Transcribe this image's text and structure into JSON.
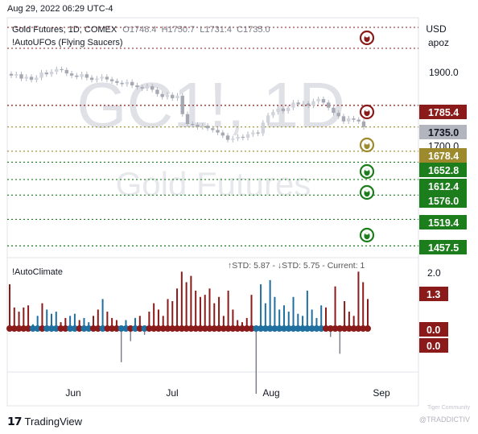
{
  "header": {
    "datetime": "Aug 29, 2022 06:29 UTC-4",
    "symbol_line": "Gold Futures, 1D, COMEX",
    "ohlc": {
      "o_label": "O",
      "o": "1748.4",
      "h_label": "H",
      "h": "1750.7",
      "l_label": "L",
      "l": "1731.4",
      "c_label": "C",
      "c": "1735.0"
    },
    "indicator1": "!AutoUFOs (Flying Saucers)",
    "indicator2": "!AutoClimate",
    "indicator2_stats": "↑STD: 5.87 - ↓STD: 5.75 - Current: 1"
  },
  "watermark": {
    "ticker": "GC1!, 1D",
    "name": "Gold Futures"
  },
  "price_axis": {
    "currency": "USD",
    "unit": "apoz",
    "tick": "1900.0"
  },
  "price_labels": [
    {
      "value": "1785.4",
      "bg": "#8b1a1a",
      "fg": "#ffffff"
    },
    {
      "value": "1735.0",
      "bg": "#b2b5be",
      "fg": "#131722"
    },
    {
      "value": "1700.0",
      "bg": "#ffffff",
      "fg": "#131722"
    },
    {
      "value": "1678.4",
      "bg": "#9c8a2c",
      "fg": "#ffffff"
    },
    {
      "value": "1652.8",
      "bg": "#1b7d1b",
      "fg": "#ffffff"
    },
    {
      "value": "1612.4",
      "bg": "#1b7d1b",
      "fg": "#ffffff"
    },
    {
      "value": "1576.0",
      "bg": "#1b7d1b",
      "fg": "#ffffff"
    },
    {
      "value": "1519.4",
      "bg": "#1b7d1b",
      "fg": "#ffffff"
    },
    {
      "value": "1457.5",
      "bg": "#1b7d1b",
      "fg": "#ffffff"
    }
  ],
  "osc_axis": {
    "tick": "2.0",
    "labels": [
      {
        "value": "1.3",
        "bg": "#8b1a1a",
        "fg": "#ffffff"
      },
      {
        "value": "0.0",
        "bg": "#8b1a1a",
        "fg": "#ffffff"
      },
      {
        "value": "0.0",
        "bg": "#8b1a1a",
        "fg": "#ffffff"
      }
    ]
  },
  "time_axis": [
    "Jun",
    "Jul",
    "Aug",
    "Sep"
  ],
  "footer": {
    "brand": "TradingView",
    "handle": "@TRADDICTIV",
    "badge": "Tiger Community"
  },
  "colors": {
    "red": "#8b1a1a",
    "blue": "#1f6fa0",
    "green": "#1b7d1b",
    "olive": "#9c8a2c",
    "candle": "#b2b5be",
    "grid": "#e6e8ee"
  },
  "chart_data": [
    {
      "type": "candlestick",
      "title": "Gold Futures, 1D, COMEX",
      "x_ticks": [
        "Jun",
        "Jul",
        "Aug",
        "Sep"
      ],
      "y_tick": 1900.0,
      "ylim": [
        1430,
        1990
      ],
      "closes": [
        1855,
        1858,
        1848,
        1852,
        1845,
        1850,
        1862,
        1858,
        1864,
        1870,
        1868,
        1860,
        1855,
        1852,
        1858,
        1850,
        1845,
        1848,
        1852,
        1846,
        1842,
        1838,
        1835,
        1840,
        1832,
        1828,
        1825,
        1830,
        1822,
        1812,
        1805,
        1810,
        1802,
        1808,
        1765,
        1742,
        1740,
        1735,
        1738,
        1732,
        1728,
        1722,
        1715,
        1705,
        1708,
        1712,
        1710,
        1718,
        1722,
        1720,
        1745,
        1762,
        1770,
        1778,
        1772,
        1780,
        1792,
        1788,
        1790,
        1785,
        1795,
        1800,
        1792,
        1780,
        1768,
        1760,
        1748,
        1755,
        1752,
        1748,
        1735
      ],
      "levels": [
        {
          "value": 1785.4,
          "kind": "resistance"
        },
        {
          "value": 1735.0,
          "kind": "last"
        },
        {
          "value": 1678.4,
          "kind": "neutral"
        },
        {
          "value": 1652.8,
          "kind": "support"
        },
        {
          "value": 1612.4,
          "kind": "support"
        },
        {
          "value": 1576.0,
          "kind": "support"
        },
        {
          "value": 1519.4,
          "kind": "support"
        },
        {
          "value": 1457.5,
          "kind": "support"
        }
      ]
    },
    {
      "type": "bar",
      "title": "!AutoClimate",
      "y_tick": 2.0,
      "ylim": [
        -3.0,
        2.6
      ],
      "values": [
        2.1,
        1.0,
        0.8,
        1.0,
        1.1,
        0.2,
        0.6,
        1.2,
        0.9,
        0.7,
        0.8,
        0.3,
        0.5,
        0.6,
        0.7,
        0.4,
        0.5,
        0.3,
        0.6,
        0.9,
        1.4,
        0.8,
        0.5,
        0.4,
        -1.6,
        0.4,
        -0.6,
        0.5,
        0.6,
        -0.3,
        0.8,
        1.2,
        0.9,
        0.6,
        1.4,
        1.3,
        1.9,
        2.7,
        2.2,
        2.5,
        1.8,
        1.5,
        1.6,
        1.9,
        1.2,
        1.5,
        0.6,
        1.8,
        0.9,
        0.4,
        0.3,
        0.5,
        1.6,
        -3.1,
        2.1,
        1.2,
        2.3,
        1.5,
        0.9,
        1.1,
        0.8,
        1.5,
        0.7,
        0.6,
        1.8,
        0.9,
        0.5,
        1.1,
        1.0,
        -0.4,
        2.0,
        -1.2,
        1.3,
        0.8,
        0.6,
        2.7,
        2.2,
        1.4
      ],
      "direction": [
        -1,
        -1,
        -1,
        -1,
        -1,
        1,
        1,
        -1,
        1,
        1,
        1,
        -1,
        -1,
        1,
        1,
        -1,
        1,
        1,
        -1,
        -1,
        1,
        -1,
        -1,
        -1,
        1,
        1,
        -1,
        1,
        -1,
        1,
        -1,
        -1,
        -1,
        -1,
        -1,
        -1,
        -1,
        -1,
        -1,
        -1,
        -1,
        -1,
        -1,
        -1,
        -1,
        -1,
        -1,
        -1,
        -1,
        -1,
        -1,
        -1,
        -1,
        1,
        1,
        1,
        1,
        1,
        1,
        1,
        1,
        1,
        1,
        1,
        1,
        1,
        1,
        1,
        -1,
        -1,
        -1,
        -1,
        -1,
        -1,
        -1,
        -1,
        -1,
        -1
      ]
    }
  ]
}
